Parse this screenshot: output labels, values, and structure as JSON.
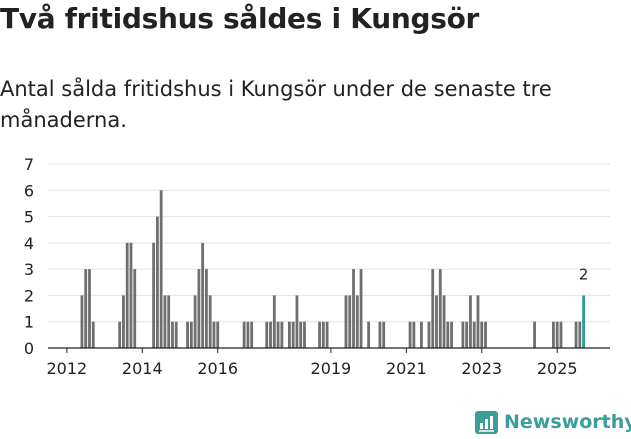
{
  "title": "Två fritidshus såldes i Kungsör",
  "subtitle": "Antal sålda fritidshus i Kungsör under de senaste tre månaderna.",
  "brand": {
    "name": "Newsworthy",
    "icon": "newsworthy-logo-icon"
  },
  "colors": {
    "bar": "#6f6f72",
    "highlight": "#2a9d96",
    "grid": "#e2e2e2",
    "axis": "#222222",
    "brand": "#3a9e9a"
  },
  "chart_data": {
    "type": "bar",
    "ylim": [
      0,
      7
    ],
    "yticks": [
      0,
      1,
      2,
      3,
      4,
      5,
      6,
      7
    ],
    "xlim": [
      2011.5,
      2026.4
    ],
    "xticks": [
      2012,
      2014,
      2016,
      2019,
      2021,
      2023,
      2025
    ],
    "xtick_labels": [
      "2012",
      "2014",
      "2016",
      "2019",
      "2021",
      "2023",
      "2025"
    ],
    "grid": true,
    "series": [
      {
        "x": [
          2012.4,
          2012.5,
          2012.6,
          2012.7,
          2013.4,
          2013.5,
          2013.6,
          2013.7,
          2013.8,
          2014.3,
          2014.4,
          2014.5,
          2014.6,
          2014.7,
          2014.8,
          2014.9,
          2015.2,
          2015.3,
          2015.4,
          2015.5,
          2015.6,
          2015.7,
          2015.8,
          2015.9,
          2016.0,
          2016.7,
          2016.8,
          2016.9,
          2017.3,
          2017.4,
          2017.5,
          2017.6,
          2017.7,
          2017.9,
          2018.0,
          2018.1,
          2018.2,
          2018.3,
          2018.7,
          2018.8,
          2018.9,
          2019.4,
          2019.5,
          2019.6,
          2019.7,
          2019.8,
          2020.0,
          2020.3,
          2020.4,
          2021.1,
          2021.2,
          2021.4,
          2021.6,
          2021.7,
          2021.8,
          2021.9,
          2022.0,
          2022.1,
          2022.2,
          2022.5,
          2022.6,
          2022.7,
          2022.8,
          2022.9,
          2023.0,
          2023.1,
          2024.4,
          2024.9,
          2025.0,
          2025.1,
          2025.5,
          2025.6,
          2025.7
        ],
        "values": [
          2,
          3,
          3,
          1,
          1,
          2,
          4,
          4,
          3,
          4,
          5,
          6,
          2,
          2,
          1,
          1,
          1,
          1,
          2,
          3,
          4,
          3,
          2,
          1,
          1,
          1,
          1,
          1,
          1,
          1,
          2,
          1,
          1,
          1,
          1,
          2,
          1,
          1,
          1,
          1,
          1,
          2,
          2,
          3,
          2,
          3,
          1,
          1,
          1,
          1,
          1,
          1,
          1,
          3,
          2,
          3,
          2,
          1,
          1,
          1,
          1,
          2,
          1,
          2,
          1,
          1,
          1,
          1,
          1,
          1,
          1,
          1,
          2
        ]
      }
    ],
    "annotation": {
      "text": "2",
      "x": 2025.7,
      "y": 2
    }
  }
}
